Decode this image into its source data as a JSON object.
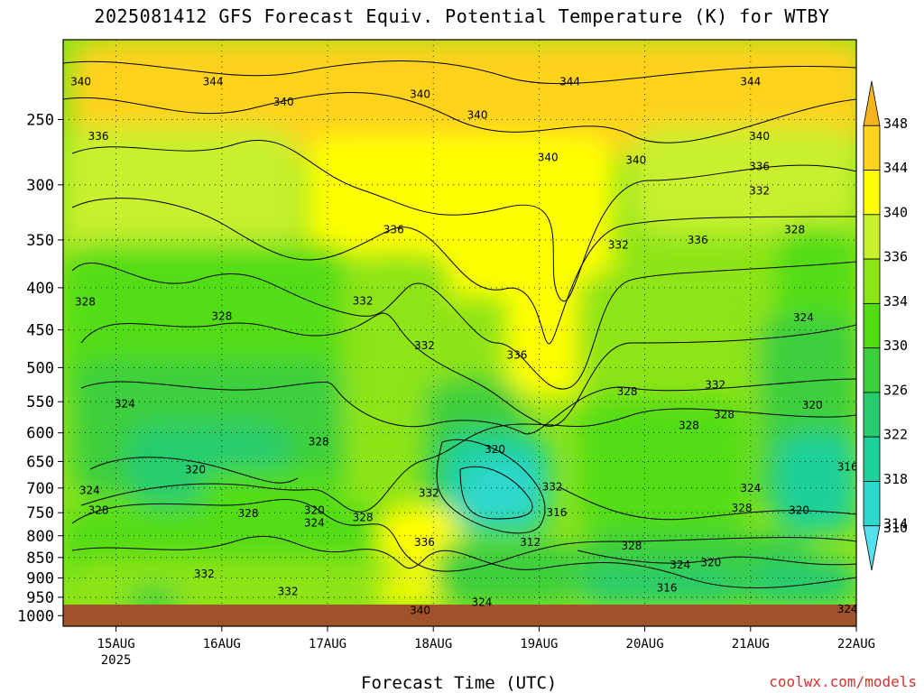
{
  "title": "2025081412 GFS Forecast Equiv. Potential Temperature (K) for WTBY",
  "xlabel": "Forecast Time (UTC)",
  "credit": "coolwx.com/models",
  "chart_data": {
    "type": "heatmap",
    "title": "2025081412 GFS Forecast Equiv. Potential Temperature (K) for WTBY",
    "xlabel": "Forecast Time (UTC)",
    "ylabel": "",
    "y_scale": "log-pressure",
    "y_reversed": true,
    "ylim": [
      1000,
      200
    ],
    "yticks": [
      250,
      300,
      350,
      400,
      450,
      500,
      550,
      600,
      650,
      700,
      750,
      800,
      850,
      900,
      950,
      1000
    ],
    "x_ticks": [
      {
        "label": "15AUG",
        "sub": "2025"
      },
      {
        "label": "16AUG",
        "sub": ""
      },
      {
        "label": "17AUG",
        "sub": ""
      },
      {
        "label": "18AUG",
        "sub": ""
      },
      {
        "label": "19AUG",
        "sub": ""
      },
      {
        "label": "20AUG",
        "sub": ""
      },
      {
        "label": "21AUG",
        "sub": ""
      },
      {
        "label": "22AUG",
        "sub": ""
      }
    ],
    "xlim": [
      "2025-08-14 12Z",
      "2025-08-22 00Z"
    ],
    "colorbar": {
      "levels": [
        310,
        314,
        318,
        322,
        326,
        330,
        334,
        336,
        340,
        344,
        348
      ],
      "colors": [
        "#55e0f0",
        "#2ed8cc",
        "#1ed09a",
        "#28cc6e",
        "#3ccf3c",
        "#52dd12",
        "#8de418",
        "#c8f02e",
        "#ffff00",
        "#ffd21e",
        "#f5b41e"
      ],
      "extend": "both"
    },
    "contour_interval": 2,
    "contour_labels": [
      {
        "v": "340",
        "d": "2025-08-14 16Z",
        "p": 225
      },
      {
        "v": "344",
        "d": "2025-08-15 22Z",
        "p": 225
      },
      {
        "v": "336",
        "d": "2025-08-14 20Z",
        "p": 262
      },
      {
        "v": "340",
        "d": "2025-08-16 14Z",
        "p": 238
      },
      {
        "v": "340",
        "d": "2025-08-17 21Z",
        "p": 233
      },
      {
        "v": "340",
        "d": "2025-08-18 10Z",
        "p": 247
      },
      {
        "v": "344",
        "d": "2025-08-19 07Z",
        "p": 225
      },
      {
        "v": "340",
        "d": "2025-08-19 02Z",
        "p": 278
      },
      {
        "v": "340",
        "d": "2025-08-19 22Z",
        "p": 280
      },
      {
        "v": "344",
        "d": "2025-08-21 00Z",
        "p": 225
      },
      {
        "v": "340",
        "d": "2025-08-21 02Z",
        "p": 262
      },
      {
        "v": "336",
        "d": "2025-08-21 02Z",
        "p": 285
      },
      {
        "v": "332",
        "d": "2025-08-21 02Z",
        "p": 305
      },
      {
        "v": "328",
        "d": "2025-08-21 10Z",
        "p": 340
      },
      {
        "v": "336",
        "d": "2025-08-17 15Z",
        "p": 340
      },
      {
        "v": "332",
        "d": "2025-08-19 18Z",
        "p": 355
      },
      {
        "v": "336",
        "d": "2025-08-20 12Z",
        "p": 350
      },
      {
        "v": "328",
        "d": "2025-08-14 17Z",
        "p": 416
      },
      {
        "v": "328",
        "d": "2025-08-16 00Z",
        "p": 433
      },
      {
        "v": "332",
        "d": "2025-08-17 08Z",
        "p": 415
      },
      {
        "v": "332",
        "d": "2025-08-17 22Z",
        "p": 470
      },
      {
        "v": "336",
        "d": "2025-08-18 19Z",
        "p": 483
      },
      {
        "v": "324",
        "d": "2025-08-21 12Z",
        "p": 435
      },
      {
        "v": "332",
        "d": "2025-08-20 16Z",
        "p": 525
      },
      {
        "v": "328",
        "d": "2025-08-19 20Z",
        "p": 535
      },
      {
        "v": "324",
        "d": "2025-08-15 02Z",
        "p": 553
      },
      {
        "v": "320",
        "d": "2025-08-18 14Z",
        "p": 628
      },
      {
        "v": "328",
        "d": "2025-08-20 10Z",
        "p": 588
      },
      {
        "v": "328",
        "d": "2025-08-20 18Z",
        "p": 570
      },
      {
        "v": "320",
        "d": "2025-08-21 14Z",
        "p": 555
      },
      {
        "v": "328",
        "d": "2025-08-16 22Z",
        "p": 615
      },
      {
        "v": "320",
        "d": "2025-08-15 18Z",
        "p": 665
      },
      {
        "v": "316",
        "d": "2025-08-21 22Z",
        "p": 660
      },
      {
        "v": "324",
        "d": "2025-08-14 18Z",
        "p": 705
      },
      {
        "v": "328",
        "d": "2025-08-14 20Z",
        "p": 745
      },
      {
        "v": "328",
        "d": "2025-08-16 06Z",
        "p": 752
      },
      {
        "v": "320",
        "d": "2025-08-16 21Z",
        "p": 745
      },
      {
        "v": "324",
        "d": "2025-08-16 21Z",
        "p": 772
      },
      {
        "v": "328",
        "d": "2025-08-17 08Z",
        "p": 760
      },
      {
        "v": "332",
        "d": "2025-08-17 23Z",
        "p": 710
      },
      {
        "v": "336",
        "d": "2025-08-17 22Z",
        "p": 815
      },
      {
        "v": "332",
        "d": "2025-08-19 03Z",
        "p": 698
      },
      {
        "v": "316",
        "d": "2025-08-19 04Z",
        "p": 750
      },
      {
        "v": "312",
        "d": "2025-08-18 22Z",
        "p": 815
      },
      {
        "v": "324",
        "d": "2025-08-21 00Z",
        "p": 700
      },
      {
        "v": "328",
        "d": "2025-08-20 22Z",
        "p": 740
      },
      {
        "v": "320",
        "d": "2025-08-21 11Z",
        "p": 745
      },
      {
        "v": "328",
        "d": "2025-08-19 21Z",
        "p": 823
      },
      {
        "v": "324",
        "d": "2025-08-20 08Z",
        "p": 868
      },
      {
        "v": "320",
        "d": "2025-08-20 15Z",
        "p": 862
      },
      {
        "v": "316",
        "d": "2025-08-20 05Z",
        "p": 925
      },
      {
        "v": "332",
        "d": "2025-08-15 20Z",
        "p": 890
      },
      {
        "v": "332",
        "d": "2025-08-16 15Z",
        "p": 935
      },
      {
        "v": "340",
        "d": "2025-08-17 21Z",
        "p": 985
      },
      {
        "v": "324",
        "d": "2025-08-18 11Z",
        "p": 963
      },
      {
        "v": "324",
        "d": "2025-08-21 22Z",
        "p": 982
      }
    ]
  }
}
